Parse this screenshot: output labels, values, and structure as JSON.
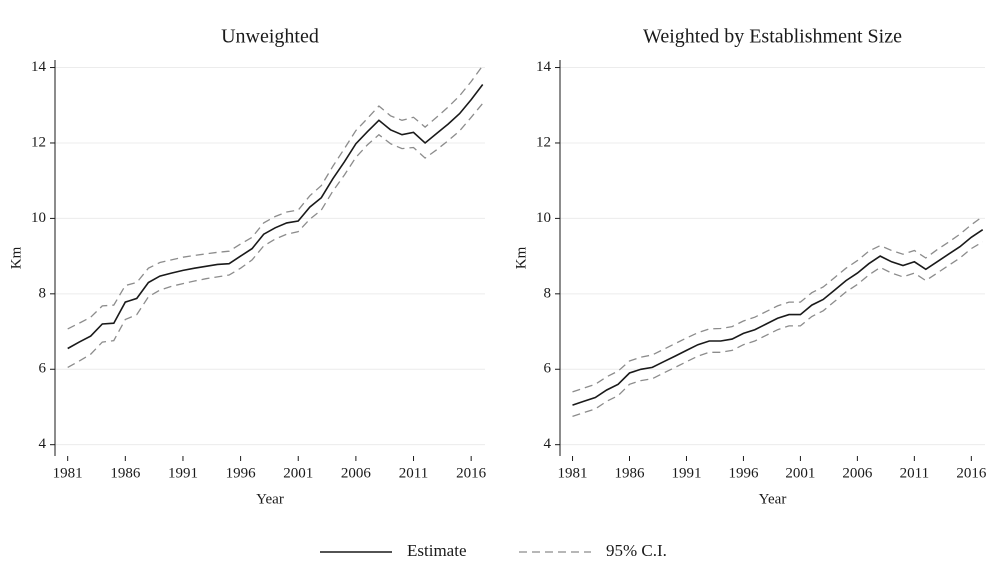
{
  "chart_data": [
    {
      "type": "line",
      "title": "Unweighted",
      "x_label": "Year",
      "y_label": "Km",
      "x": [
        1981,
        1982,
        1983,
        1984,
        1985,
        1986,
        1987,
        1988,
        1989,
        1990,
        1991,
        1992,
        1993,
        1994,
        1995,
        1996,
        1997,
        1998,
        1999,
        2000,
        2001,
        2002,
        2003,
        2004,
        2005,
        2006,
        2007,
        2008,
        2009,
        2010,
        2011,
        2012,
        2013,
        2014,
        2015,
        2016,
        2017
      ],
      "xlim": [
        1979.9,
        2017.2
      ],
      "xticks": [
        1981,
        1986,
        1991,
        1996,
        2001,
        2006,
        2011,
        2016
      ],
      "ylim": [
        3.7,
        14.2
      ],
      "yticks": [
        4,
        6,
        8,
        10,
        12,
        14
      ],
      "grid": true,
      "series": [
        {
          "name": "Estimate",
          "color": "#1a1a1a",
          "dashed": false,
          "values": [
            6.55,
            6.72,
            6.88,
            7.2,
            7.22,
            7.78,
            7.88,
            8.3,
            8.47,
            8.55,
            8.62,
            8.68,
            8.73,
            8.78,
            8.8,
            9.0,
            9.2,
            9.58,
            9.75,
            9.88,
            9.93,
            10.3,
            10.55,
            11.05,
            11.5,
            11.98,
            12.3,
            12.6,
            12.35,
            12.22,
            12.28,
            12.0,
            12.25,
            12.5,
            12.78,
            13.15,
            13.55
          ]
        },
        {
          "name": "95% C.I.",
          "color": "#8c8c8c",
          "dashed": true,
          "upper": [
            7.07,
            7.22,
            7.38,
            7.68,
            7.7,
            8.22,
            8.3,
            8.68,
            8.83,
            8.9,
            8.97,
            9.02,
            9.06,
            9.1,
            9.13,
            9.32,
            9.5,
            9.88,
            10.05,
            10.17,
            10.22,
            10.6,
            10.87,
            11.38,
            11.85,
            12.33,
            12.65,
            12.98,
            12.72,
            12.6,
            12.68,
            12.42,
            12.68,
            12.95,
            13.25,
            13.63,
            14.05
          ],
          "lower": [
            6.05,
            6.22,
            6.4,
            6.72,
            6.76,
            7.32,
            7.45,
            7.92,
            8.1,
            8.2,
            8.27,
            8.34,
            8.4,
            8.45,
            8.5,
            8.68,
            8.9,
            9.27,
            9.45,
            9.58,
            9.65,
            9.98,
            10.22,
            10.72,
            11.15,
            11.62,
            11.95,
            12.22,
            11.98,
            11.85,
            11.88,
            11.6,
            11.82,
            12.06,
            12.32,
            12.68,
            13.05
          ]
        }
      ]
    },
    {
      "type": "line",
      "title": "Weighted by Establishment Size",
      "x_label": "Year",
      "y_label": "Km",
      "x": [
        1981,
        1982,
        1983,
        1984,
        1985,
        1986,
        1987,
        1988,
        1989,
        1990,
        1991,
        1992,
        1993,
        1994,
        1995,
        1996,
        1997,
        1998,
        1999,
        2000,
        2001,
        2002,
        2003,
        2004,
        2005,
        2006,
        2007,
        2008,
        2009,
        2010,
        2011,
        2012,
        2013,
        2014,
        2015,
        2016,
        2017
      ],
      "xlim": [
        1979.9,
        2017.2
      ],
      "xticks": [
        1981,
        1986,
        1991,
        1996,
        2001,
        2006,
        2011,
        2016
      ],
      "ylim": [
        3.7,
        14.2
      ],
      "yticks": [
        4,
        6,
        8,
        10,
        12,
        14
      ],
      "grid": true,
      "series": [
        {
          "color": "#1a1a1a",
          "dashed": false,
          "values": [
            5.05,
            5.15,
            5.25,
            5.45,
            5.6,
            5.9,
            6.0,
            6.05,
            6.2,
            6.35,
            6.5,
            6.65,
            6.75,
            6.75,
            6.8,
            6.95,
            7.05,
            7.2,
            7.35,
            7.45,
            7.45,
            7.7,
            7.85,
            8.1,
            8.35,
            8.55,
            8.8,
            9.0,
            8.85,
            8.75,
            8.85,
            8.65,
            8.85,
            9.05,
            9.25,
            9.5,
            9.7
          ]
        },
        {
          "color": "#8c8c8c",
          "dashed": true,
          "upper": [
            5.4,
            5.5,
            5.6,
            5.8,
            5.95,
            6.22,
            6.32,
            6.38,
            6.53,
            6.68,
            6.83,
            6.97,
            7.07,
            7.08,
            7.13,
            7.28,
            7.38,
            7.53,
            7.68,
            7.78,
            7.78,
            8.03,
            8.18,
            8.43,
            8.68,
            8.88,
            9.13,
            9.28,
            9.15,
            9.05,
            9.15,
            8.95,
            9.17,
            9.37,
            9.58,
            9.83,
            10.05
          ],
          "lower": [
            4.75,
            4.85,
            4.95,
            5.15,
            5.3,
            5.6,
            5.7,
            5.75,
            5.9,
            6.05,
            6.2,
            6.35,
            6.45,
            6.45,
            6.5,
            6.65,
            6.75,
            6.9,
            7.05,
            7.15,
            7.15,
            7.4,
            7.55,
            7.8,
            8.05,
            8.25,
            8.5,
            8.7,
            8.55,
            8.45,
            8.55,
            8.35,
            8.55,
            8.75,
            8.95,
            9.2,
            9.38
          ]
        }
      ]
    }
  ]
}
